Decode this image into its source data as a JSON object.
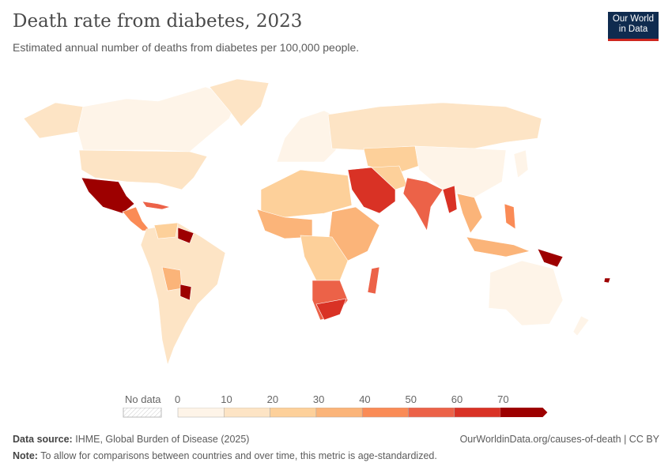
{
  "header": {
    "title": "Death rate from diabetes, 2023",
    "subtitle": "Estimated annual number of deaths from diabetes per 100,000 people.",
    "logo": "Our World in Data"
  },
  "legend": {
    "no_data_label": "No data",
    "ticks": [
      "0",
      "10",
      "20",
      "30",
      "40",
      "50",
      "60",
      "70"
    ],
    "bins": [
      {
        "min": 0,
        "max": 10,
        "color": "#fef4e8"
      },
      {
        "min": 10,
        "max": 20,
        "color": "#fde4c5"
      },
      {
        "min": 20,
        "max": 30,
        "color": "#fdd09a"
      },
      {
        "min": 30,
        "max": 40,
        "color": "#fbb479"
      },
      {
        "min": 40,
        "max": 50,
        "color": "#fa8b56"
      },
      {
        "min": 50,
        "max": 60,
        "color": "#ec6248"
      },
      {
        "min": 60,
        "max": 70,
        "color": "#d93225"
      },
      {
        "min": 70,
        "max": null,
        "color": "#9d0000"
      }
    ]
  },
  "footer": {
    "source_label": "Data source:",
    "source": "IHME, Global Burden of Disease (2025)",
    "url": "OurWorldinData.org/causes-of-death | CC BY",
    "note_label": "Note:",
    "note": "To allow for comparisons between countries and over time, this metric is age-standardized."
  }
}
